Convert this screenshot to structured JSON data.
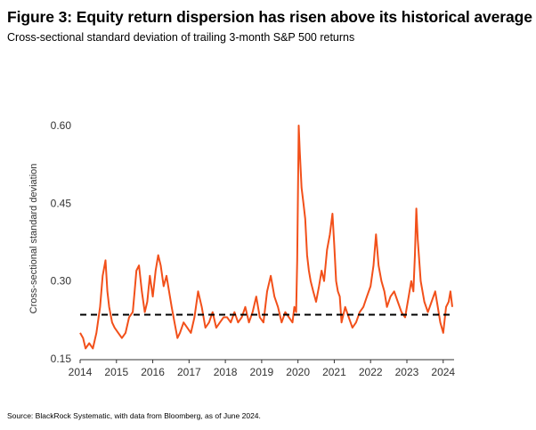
{
  "title": "Figure 3: Equity return dispersion has risen above its historical average",
  "subtitle": "Cross-sectional standard deviation of trailing 3-month S&P 500 returns",
  "source": "Source: BlackRock Systematic, with data from Bloomberg, as of June 2024.",
  "colors": {
    "series": "#f2501a",
    "average": "#000000",
    "axis": "#333333"
  },
  "chart_data": {
    "type": "line",
    "title": "Figure 3: Equity return dispersion has risen above its historical average",
    "subtitle": "Cross-sectional standard deviation of trailing 3-month S&P 500 returns",
    "xlabel": "",
    "ylabel": "Cross-sectional standard deviation",
    "xlim": [
      2014.0,
      2024.3
    ],
    "ylim": [
      0.15,
      0.6
    ],
    "x_ticks": [
      "2014",
      "2015",
      "2016",
      "2017",
      "2018",
      "2019",
      "2020",
      "2021",
      "2022",
      "2023",
      "2024"
    ],
    "y_ticks": [
      "0.15",
      "0.30",
      "0.45",
      "0.60"
    ],
    "grid": false,
    "legend": "none",
    "series": [
      {
        "style": "solid",
        "x": [
          2014.0,
          2014.08,
          2014.15,
          2014.25,
          2014.35,
          2014.45,
          2014.55,
          2014.62,
          2014.7,
          2014.75,
          2014.8,
          2014.88,
          2014.95,
          2015.05,
          2015.15,
          2015.25,
          2015.35,
          2015.45,
          2015.5,
          2015.55,
          2015.62,
          2015.7,
          2015.78,
          2015.85,
          2015.92,
          2016.0,
          2016.08,
          2016.15,
          2016.22,
          2016.3,
          2016.38,
          2016.45,
          2016.52,
          2016.6,
          2016.68,
          2016.75,
          2016.85,
          2016.95,
          2017.05,
          2017.15,
          2017.25,
          2017.35,
          2017.45,
          2017.55,
          2017.65,
          2017.75,
          2017.85,
          2017.95,
          2018.05,
          2018.15,
          2018.25,
          2018.35,
          2018.45,
          2018.55,
          2018.65,
          2018.75,
          2018.85,
          2018.95,
          2019.05,
          2019.15,
          2019.25,
          2019.35,
          2019.45,
          2019.55,
          2019.65,
          2019.75,
          2019.85,
          2019.9,
          2019.95,
          2019.98,
          2020.02,
          2020.05,
          2020.1,
          2020.15,
          2020.2,
          2020.25,
          2020.3,
          2020.35,
          2020.42,
          2020.5,
          2020.58,
          2020.65,
          2020.72,
          2020.8,
          2020.88,
          2020.95,
          2021.0,
          2021.05,
          2021.1,
          2021.15,
          2021.2,
          2021.3,
          2021.4,
          2021.5,
          2021.6,
          2021.7,
          2021.8,
          2021.9,
          2022.0,
          2022.08,
          2022.15,
          2022.22,
          2022.3,
          2022.38,
          2022.45,
          2022.55,
          2022.65,
          2022.75,
          2022.85,
          2022.95,
          2023.05,
          2023.12,
          2023.18,
          2023.22,
          2023.26,
          2023.3,
          2023.38,
          2023.48,
          2023.58,
          2023.68,
          2023.78,
          2023.85,
          2023.92,
          2024.0,
          2024.08,
          2024.15,
          2024.2,
          2024.25
        ],
        "y": [
          0.2,
          0.19,
          0.17,
          0.18,
          0.17,
          0.2,
          0.25,
          0.31,
          0.34,
          0.28,
          0.25,
          0.22,
          0.21,
          0.2,
          0.19,
          0.2,
          0.23,
          0.24,
          0.28,
          0.32,
          0.33,
          0.28,
          0.24,
          0.26,
          0.31,
          0.27,
          0.32,
          0.35,
          0.33,
          0.29,
          0.31,
          0.28,
          0.25,
          0.22,
          0.19,
          0.2,
          0.22,
          0.21,
          0.2,
          0.23,
          0.28,
          0.25,
          0.21,
          0.22,
          0.24,
          0.21,
          0.22,
          0.23,
          0.23,
          0.22,
          0.24,
          0.22,
          0.23,
          0.25,
          0.22,
          0.24,
          0.27,
          0.23,
          0.22,
          0.28,
          0.31,
          0.27,
          0.25,
          0.22,
          0.24,
          0.23,
          0.22,
          0.25,
          0.24,
          0.34,
          0.6,
          0.55,
          0.48,
          0.45,
          0.42,
          0.35,
          0.32,
          0.3,
          0.28,
          0.26,
          0.29,
          0.32,
          0.3,
          0.36,
          0.39,
          0.43,
          0.37,
          0.3,
          0.28,
          0.27,
          0.22,
          0.25,
          0.23,
          0.21,
          0.22,
          0.24,
          0.25,
          0.27,
          0.29,
          0.33,
          0.39,
          0.33,
          0.3,
          0.28,
          0.25,
          0.27,
          0.28,
          0.26,
          0.24,
          0.23,
          0.27,
          0.3,
          0.28,
          0.35,
          0.44,
          0.38,
          0.3,
          0.26,
          0.24,
          0.26,
          0.28,
          0.25,
          0.22,
          0.2,
          0.25,
          0.26,
          0.28,
          0.25
        ]
      },
      {
        "style": "dashed",
        "x": [
          2014.0,
          2024.25
        ],
        "y": [
          0.235,
          0.235
        ]
      }
    ]
  }
}
